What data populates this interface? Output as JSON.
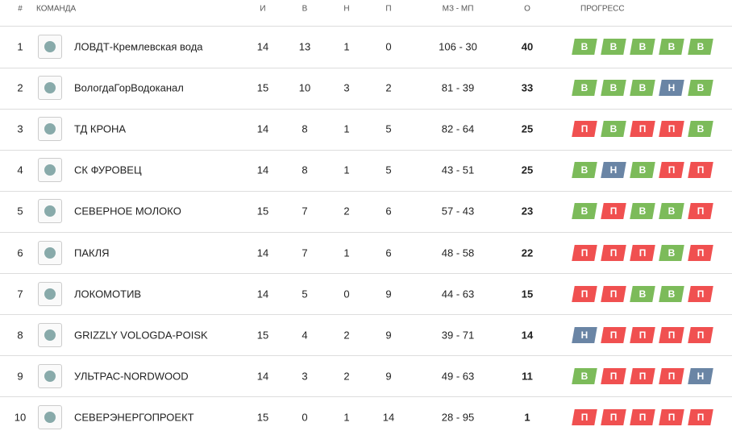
{
  "table": {
    "header": [
      "#",
      "КОМАНДА",
      "И",
      "В",
      "Н",
      "П",
      "МЗ - МП",
      "О",
      "ПРОГРЕСС"
    ],
    "progress_colors": {
      "В": "#7cbb5a",
      "П": "#f05050",
      "Н": "#6a85a5"
    },
    "rows": [
      {
        "pos": 1,
        "team": "ЛОВДТ-Кремлевская вода",
        "games": 14,
        "wins": 13,
        "draws": 1,
        "losses": 0,
        "goals": "106 - 30",
        "points": 40,
        "progress": [
          "В",
          "В",
          "В",
          "В",
          "В"
        ]
      },
      {
        "pos": 2,
        "team": "ВологдаГорВодоканал",
        "games": 15,
        "wins": 10,
        "draws": 3,
        "losses": 2,
        "goals": "81 - 39",
        "points": 33,
        "progress": [
          "В",
          "В",
          "В",
          "Н",
          "В"
        ]
      },
      {
        "pos": 3,
        "team": "ТД КРОНА",
        "games": 14,
        "wins": 8,
        "draws": 1,
        "losses": 5,
        "goals": "82 - 64",
        "points": 25,
        "progress": [
          "П",
          "В",
          "П",
          "П",
          "В"
        ]
      },
      {
        "pos": 4,
        "team": "СК ФУРОВЕЦ",
        "games": 14,
        "wins": 8,
        "draws": 1,
        "losses": 5,
        "goals": "43 - 51",
        "points": 25,
        "progress": [
          "В",
          "Н",
          "В",
          "П",
          "П"
        ]
      },
      {
        "pos": 5,
        "team": "СЕВЕРНОЕ МОЛОКО",
        "games": 15,
        "wins": 7,
        "draws": 2,
        "losses": 6,
        "goals": "57 - 43",
        "points": 23,
        "progress": [
          "В",
          "П",
          "В",
          "В",
          "П"
        ]
      },
      {
        "pos": 6,
        "team": "ПАКЛЯ",
        "games": 14,
        "wins": 7,
        "draws": 1,
        "losses": 6,
        "goals": "48 - 58",
        "points": 22,
        "progress": [
          "П",
          "П",
          "П",
          "В",
          "П"
        ]
      },
      {
        "pos": 7,
        "team": "ЛОКОМОТИВ",
        "games": 14,
        "wins": 5,
        "draws": 0,
        "losses": 9,
        "goals": "44 - 63",
        "points": 15,
        "progress": [
          "П",
          "П",
          "В",
          "В",
          "П"
        ]
      },
      {
        "pos": 8,
        "team": "GRIZZLY VOLOGDA-POISK",
        "games": 15,
        "wins": 4,
        "draws": 2,
        "losses": 9,
        "goals": "39 - 71",
        "points": 14,
        "progress": [
          "Н",
          "П",
          "П",
          "П",
          "П"
        ]
      },
      {
        "pos": 9,
        "team": "УЛЬТРАС-NORDWOOD",
        "games": 14,
        "wins": 3,
        "draws": 2,
        "losses": 9,
        "goals": "49 - 63",
        "points": 11,
        "progress": [
          "В",
          "П",
          "П",
          "П",
          "Н"
        ]
      },
      {
        "pos": 10,
        "team": "СЕВЕРЭНЕРГОПРОЕКТ",
        "games": 15,
        "wins": 0,
        "draws": 1,
        "losses": 14,
        "goals": "28 - 95",
        "points": 1,
        "progress": [
          "П",
          "П",
          "П",
          "П",
          "П"
        ]
      }
    ]
  }
}
